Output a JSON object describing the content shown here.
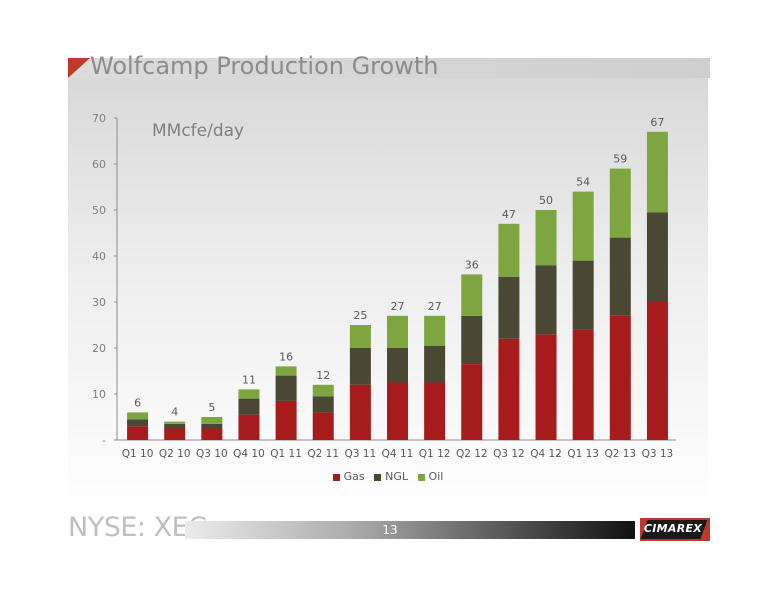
{
  "title": "Wolfcamp Production Growth",
  "unit_label": "MMcfe/day",
  "footer": {
    "ticker": "NYSE: XEC",
    "page": "13",
    "logo": "CIMAREX"
  },
  "colors": {
    "gas": "#a61c1c",
    "ngl": "#4a4732",
    "oil": "#7ea640",
    "accent": "#c0392b"
  },
  "chart_data": {
    "type": "bar",
    "stacked": true,
    "categories": [
      "Q1 10",
      "Q2 10",
      "Q3 10",
      "Q4 10",
      "Q1 11",
      "Q2 11",
      "Q3 11",
      "Q4 11",
      "Q1 12",
      "Q2 12",
      "Q3 12",
      "Q4 12",
      "Q1 13",
      "Q2 13",
      "Q3 13"
    ],
    "series": [
      {
        "name": "Gas",
        "values": [
          3,
          2.5,
          2.5,
          5.5,
          8.5,
          6,
          12,
          12.5,
          12.5,
          16.5,
          22,
          23,
          24,
          27,
          30
        ]
      },
      {
        "name": "NGL",
        "values": [
          1.5,
          1,
          1,
          3.5,
          5.5,
          3.5,
          8,
          7.5,
          8,
          10.5,
          13.5,
          15,
          15,
          17,
          19.5
        ]
      },
      {
        "name": "Oil",
        "values": [
          1.5,
          0.5,
          1.5,
          2,
          2,
          2.5,
          5,
          7,
          6.5,
          9,
          11.5,
          12,
          15,
          15,
          17.5
        ]
      }
    ],
    "totals": [
      6,
      4,
      5,
      11,
      16,
      12,
      25,
      27,
      27,
      36,
      47,
      50,
      54,
      59,
      67
    ],
    "ylim": [
      0,
      70
    ],
    "yticks": [
      "-",
      "10",
      "20",
      "30",
      "40",
      "50",
      "60",
      "70"
    ],
    "legend_position": "bottom",
    "grid": false
  }
}
